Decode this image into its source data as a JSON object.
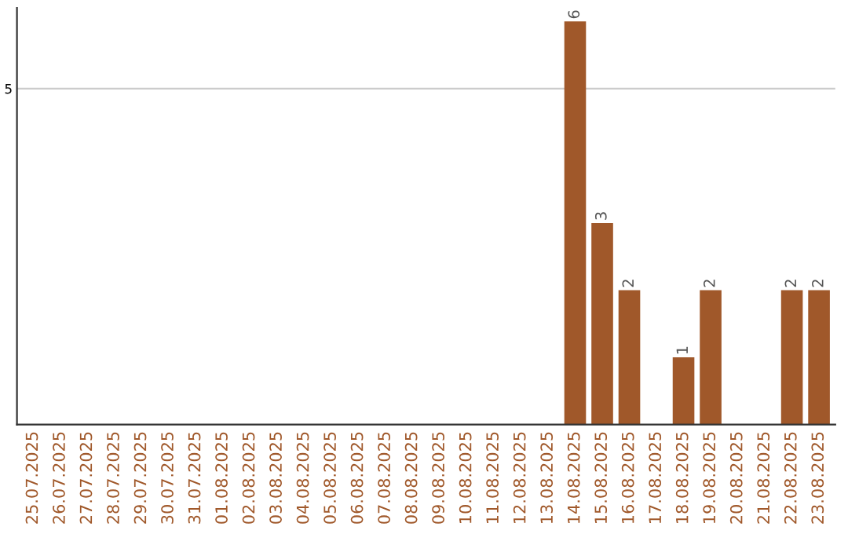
{
  "chart_data": {
    "type": "bar",
    "categories": [
      "25.07.2025",
      "26.07.2025",
      "27.07.2025",
      "28.07.2025",
      "29.07.2025",
      "30.07.2025",
      "31.07.2025",
      "01.08.2025",
      "02.08.2025",
      "03.08.2025",
      "04.08.2025",
      "05.08.2025",
      "06.08.2025",
      "07.08.2025",
      "08.08.2025",
      "09.08.2025",
      "10.08.2025",
      "11.08.2025",
      "12.08.2025",
      "13.08.2025",
      "14.08.2025",
      "15.08.2025",
      "16.08.2025",
      "17.08.2025",
      "18.08.2025",
      "19.08.2025",
      "20.08.2025",
      "21.08.2025",
      "22.08.2025",
      "23.08.2025"
    ],
    "values": [
      null,
      null,
      null,
      null,
      null,
      null,
      null,
      null,
      null,
      null,
      null,
      null,
      null,
      null,
      null,
      null,
      null,
      null,
      null,
      null,
      6,
      3,
      2,
      null,
      1,
      2,
      null,
      null,
      2,
      2
    ],
    "data_labels": true,
    "color": "#a0582a",
    "ylim": [
      0,
      6.2
    ],
    "yticks": [
      5
    ],
    "grid": "y"
  }
}
